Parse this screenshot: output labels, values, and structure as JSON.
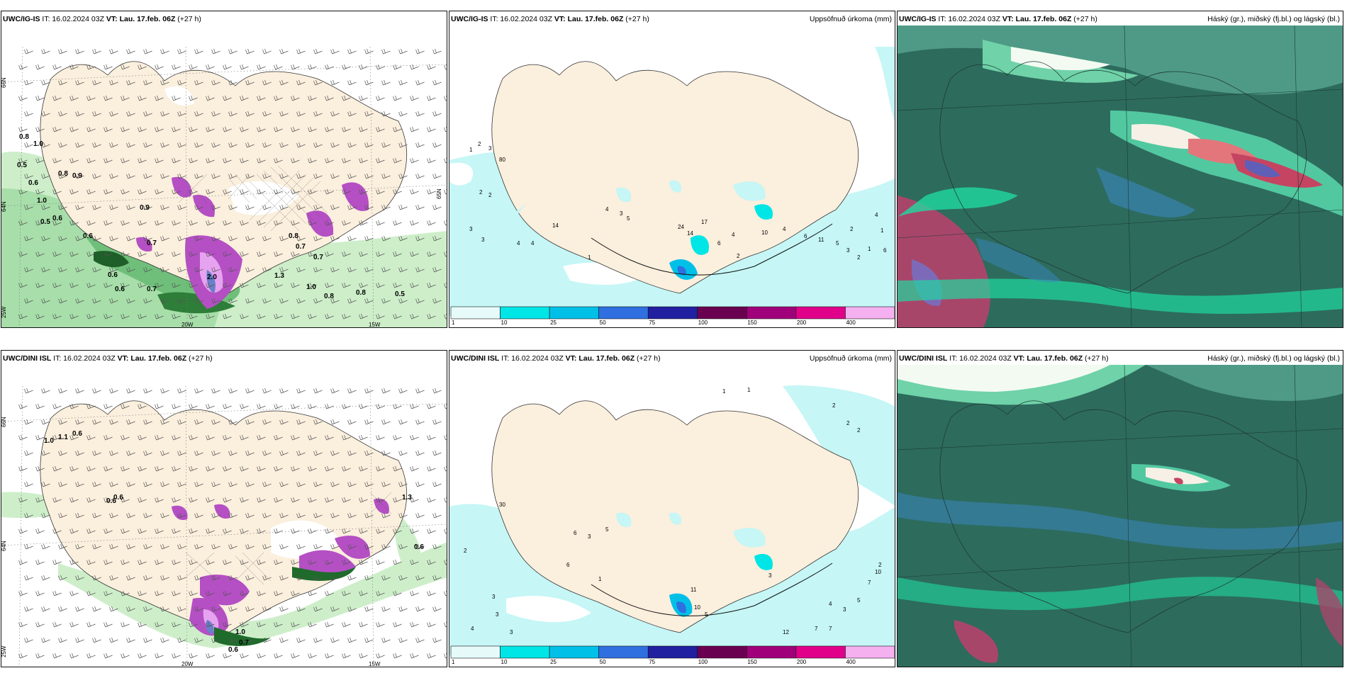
{
  "panels": {
    "p1": {
      "model": "UWC/IG-IS",
      "it": "IT: 16.02.2024 03Z",
      "vt": "VT: Lau. 17.feb. 06Z",
      "lead": "(+27 h)",
      "right": ""
    },
    "p2": {
      "model": "UWC/IG-IS",
      "it": "IT: 16.02.2024 03Z",
      "vt": "VT: Lau. 17.feb. 06Z",
      "lead": "(+27 h)",
      "right": "Uppsöfnuð úrkoma (mm)"
    },
    "p3": {
      "model": "UWC/IG-IS",
      "it": "IT: 16.02.2024 03Z",
      "vt": "VT: Lau. 17.feb. 06Z",
      "lead": "(+27 h)",
      "right": "Háský (gr.), miðský (fj.bl.) og lágský (bl.)"
    },
    "p4": {
      "model": "UWC/DINI ISL",
      "it": "IT: 16.02.2024 03Z",
      "vt": "VT: Lau. 17.feb. 06Z",
      "lead": "(+27 h)",
      "right": ""
    },
    "p5": {
      "model": "UWC/DINI ISL",
      "it": "IT: 16.02.2024 03Z",
      "vt": "VT: Lau. 17.feb. 06Z",
      "lead": "(+27 h)",
      "right": "Uppsöfnuð úrkoma (mm)"
    },
    "p6": {
      "model": "UWC/DINI ISL",
      "it": "IT: 16.02.2024 03Z",
      "vt": "VT: Lau. 17.feb. 06Z",
      "lead": "(+27 h)",
      "right": "Háský (gr.), miðský (fj.bl.) og lágský (bl.)"
    }
  },
  "axes": {
    "lat66": "66N",
    "lat64": "64N",
    "lat65": "65N",
    "lon25": "25W",
    "lon20": "20W",
    "lon15": "15W"
  },
  "colorbar": {
    "ticks": [
      "1",
      "10",
      "25",
      "50",
      "75",
      "100",
      "150",
      "200",
      "400"
    ],
    "colors": [
      "#e6fafa",
      "#00e6e6",
      "#00c0e8",
      "#2f6fe0",
      "#2020a0",
      "#6a0050",
      "#a0007a",
      "#e0008a",
      "#f5b0f0"
    ]
  },
  "snow_labels_top": [
    "0.8",
    "1.0",
    "0.5",
    "0.6",
    "0.8",
    "0.9",
    "1.0",
    "0.6",
    "0.5",
    "0.6",
    "0.9",
    "0.7",
    "0.8",
    "0.7",
    "0.7",
    "0.6",
    "0.6",
    "0.7",
    "2.0",
    "1.3",
    "1.0",
    "0.8",
    "0.8",
    "0.5"
  ],
  "snow_labels_bottom": [
    "1.0",
    "1.1",
    "0.6",
    "0.6",
    "0.6",
    "1.0",
    "0.7",
    "0.6",
    "1.3",
    "0.6"
  ],
  "precip_labels_top": [
    "2",
    "1",
    "3",
    "80",
    "2",
    "2",
    "3",
    "3",
    "14",
    "4",
    "4",
    "1",
    "4",
    "3",
    "5",
    "24",
    "14",
    "17",
    "6",
    "4",
    "2",
    "10",
    "4",
    "6",
    "11",
    "5",
    "3",
    "2",
    "1",
    "2",
    "4",
    "1",
    "6"
  ],
  "precip_labels_bottom": [
    "1",
    "1",
    "2",
    "2",
    "2",
    "30",
    "3",
    "6",
    "5",
    "2",
    "1",
    "6",
    "3",
    "3",
    "4",
    "3",
    "11",
    "10",
    "5",
    "12",
    "7",
    "7",
    "4",
    "3",
    "5",
    "7",
    "10",
    "2",
    "3"
  ],
  "colors": {
    "land": "#fbefdd",
    "snow_light": "#cdeec9",
    "snow_mid": "#7fcc87",
    "snow_dark": "#1f6b2c",
    "precip_light": "#c6f6f6",
    "cloud_base": "#2d6b5d"
  }
}
